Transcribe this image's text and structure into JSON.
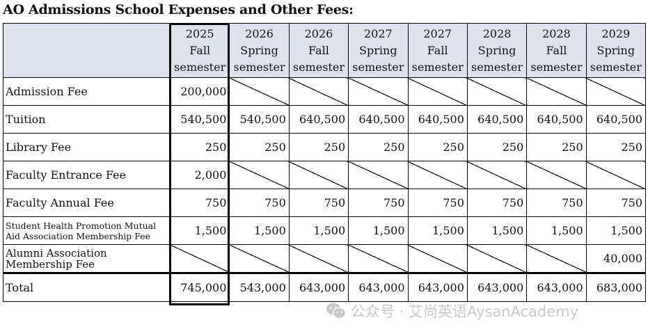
{
  "title": "AO Admissions School Expenses and Other Fees:",
  "semesters": [
    {
      "year": "2025",
      "term": "Fall",
      "suffix": "semester"
    },
    {
      "year": "2026",
      "term": "Spring",
      "suffix": "semester"
    },
    {
      "year": "2026",
      "term": "Fall",
      "suffix": "semester"
    },
    {
      "year": "2027",
      "term": "Spring",
      "suffix": "semester"
    },
    {
      "year": "2027",
      "term": "Fall",
      "suffix": "semester"
    },
    {
      "year": "2028",
      "term": "Spring",
      "suffix": "semester"
    },
    {
      "year": "2028",
      "term": "Fall",
      "suffix": "semester"
    },
    {
      "year": "2029",
      "term": "Spring",
      "suffix": "semester"
    }
  ],
  "rows": [
    {
      "label": "Admission Fee",
      "values": [
        "200,000",
        null,
        null,
        null,
        null,
        null,
        null,
        null
      ]
    },
    {
      "label": "Tuition",
      "values": [
        "540,500",
        "540,500",
        "640,500",
        "640,500",
        "640,500",
        "640,500",
        "640,500",
        "640,500"
      ]
    },
    {
      "label": "Library Fee",
      "values": [
        "250",
        "250",
        "250",
        "250",
        "250",
        "250",
        "250",
        "250"
      ]
    },
    {
      "label": "Faculty Entrance Fee",
      "values": [
        "2,000",
        null,
        null,
        null,
        null,
        null,
        null,
        null
      ]
    },
    {
      "label": "Faculty Annual Fee",
      "values": [
        "750",
        "750",
        "750",
        "750",
        "750",
        "750",
        "750",
        "750"
      ]
    },
    {
      "label": "Student Health Promotion Mutual Aid Association Membership Fee",
      "values": [
        "1,500",
        "1,500",
        "1,500",
        "1,500",
        "1,500",
        "1,500",
        "1,500",
        "1,500"
      ]
    },
    {
      "label": "Alumni Association Membership Fee",
      "values": [
        null,
        null,
        null,
        null,
        null,
        null,
        null,
        "40,000"
      ]
    }
  ],
  "total": {
    "label": "Total",
    "values": [
      "745,000",
      "543,000",
      "643,000",
      "643,000",
      "643,000",
      "643,000",
      "643,000",
      "683,000"
    ]
  },
  "watermark": {
    "icon": "wechat-icon",
    "text": "公众号 · 艾尚英语AysanAcademy"
  }
}
